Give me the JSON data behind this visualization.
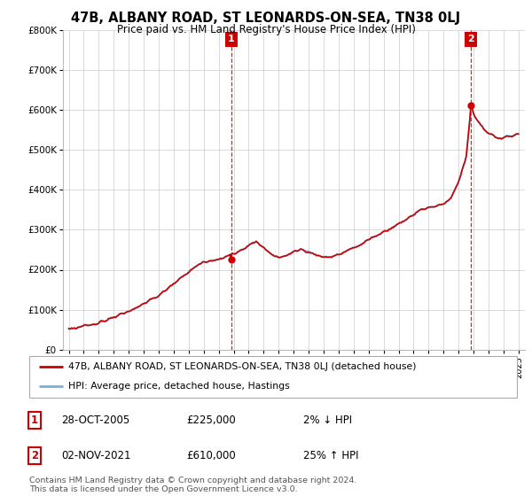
{
  "title": "47B, ALBANY ROAD, ST LEONARDS-ON-SEA, TN38 0LJ",
  "subtitle": "Price paid vs. HM Land Registry's House Price Index (HPI)",
  "ylim": [
    0,
    800000
  ],
  "yticks": [
    0,
    100000,
    200000,
    300000,
    400000,
    500000,
    600000,
    700000,
    800000
  ],
  "ytick_labels": [
    "£0",
    "£100K",
    "£200K",
    "£300K",
    "£400K",
    "£500K",
    "£600K",
    "£700K",
    "£800K"
  ],
  "sale1_year": 2005.82,
  "sale1_price": 225000,
  "sale2_year": 2021.84,
  "sale2_price": 610000,
  "line_color_property": "#cc0000",
  "line_color_hpi": "#7ab0d4",
  "vline_color": "#cc0000",
  "annotation_box_color": "#cc0000",
  "legend_label_property": "47B, ALBANY ROAD, ST LEONARDS-ON-SEA, TN38 0LJ (detached house)",
  "legend_label_hpi": "HPI: Average price, detached house, Hastings",
  "table_row1": [
    "1",
    "28-OCT-2005",
    "£225,000",
    "2% ↓ HPI"
  ],
  "table_row2": [
    "2",
    "02-NOV-2021",
    "£610,000",
    "25% ↑ HPI"
  ],
  "footnote": "Contains HM Land Registry data © Crown copyright and database right 2024.\nThis data is licensed under the Open Government Licence v3.0.",
  "background_color": "#ffffff",
  "grid_color": "#cccccc",
  "hpi_keypoints": [
    [
      1995.0,
      52000
    ],
    [
      1996.0,
      58000
    ],
    [
      1997.0,
      68000
    ],
    [
      1998.0,
      80000
    ],
    [
      1999.0,
      95000
    ],
    [
      2000.0,
      115000
    ],
    [
      2001.0,
      135000
    ],
    [
      2002.0,
      165000
    ],
    [
      2003.0,
      195000
    ],
    [
      2004.0,
      220000
    ],
    [
      2005.0,
      225000
    ],
    [
      2006.0,
      240000
    ],
    [
      2007.0,
      260000
    ],
    [
      2007.5,
      270000
    ],
    [
      2008.0,
      255000
    ],
    [
      2008.5,
      240000
    ],
    [
      2009.0,
      230000
    ],
    [
      2009.5,
      235000
    ],
    [
      2010.0,
      245000
    ],
    [
      2010.5,
      250000
    ],
    [
      2011.0,
      245000
    ],
    [
      2011.5,
      238000
    ],
    [
      2012.0,
      235000
    ],
    [
      2012.5,
      232000
    ],
    [
      2013.0,
      238000
    ],
    [
      2013.5,
      245000
    ],
    [
      2014.0,
      255000
    ],
    [
      2014.5,
      265000
    ],
    [
      2015.0,
      275000
    ],
    [
      2015.5,
      285000
    ],
    [
      2016.0,
      295000
    ],
    [
      2016.5,
      305000
    ],
    [
      2017.0,
      315000
    ],
    [
      2017.5,
      325000
    ],
    [
      2018.0,
      340000
    ],
    [
      2018.5,
      350000
    ],
    [
      2019.0,
      355000
    ],
    [
      2019.5,
      360000
    ],
    [
      2020.0,
      365000
    ],
    [
      2020.5,
      380000
    ],
    [
      2021.0,
      420000
    ],
    [
      2021.5,
      480000
    ],
    [
      2021.84,
      610000
    ],
    [
      2022.0,
      590000
    ],
    [
      2022.5,
      560000
    ],
    [
      2023.0,
      540000
    ],
    [
      2023.5,
      530000
    ],
    [
      2024.0,
      530000
    ],
    [
      2024.5,
      535000
    ],
    [
      2025.0,
      540000
    ]
  ]
}
